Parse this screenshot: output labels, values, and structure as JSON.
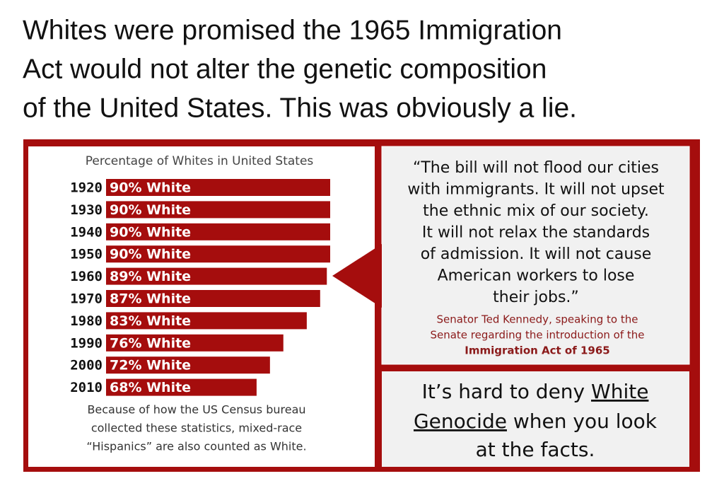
{
  "headline": [
    "Whites were promised the 1965 Immigration",
    "Act would not alter the genetic composition",
    "of the United States. This was obviously a lie."
  ],
  "chart_data": {
    "type": "bar",
    "orientation": "horizontal",
    "title": "Percentage of Whites in United States",
    "categories": [
      "1920",
      "1930",
      "1940",
      "1950",
      "1960",
      "1970",
      "1980",
      "1990",
      "2000",
      "2010"
    ],
    "values": [
      90,
      90,
      90,
      90,
      89,
      87,
      83,
      76,
      72,
      68
    ],
    "value_labels": [
      "90% White",
      "90% White",
      "90% White",
      "90% White",
      "89% White",
      "87% White",
      "83% White",
      "76% White",
      "72% White",
      "68% White"
    ],
    "color": "#a50d0d",
    "xlim": [
      23,
      90
    ],
    "note": [
      "Because of how the US Census bureau",
      "collected these statistics, mixed-race",
      "“Hispanics” are also counted as White."
    ]
  },
  "quote": {
    "lines": [
      "“The bill will not flood our cities",
      "with immigrants. It will not upset",
      "the ethnic mix of our society.",
      "It will not relax the standards",
      "of admission. It will not cause",
      "American workers to lose",
      "their jobs.”"
    ],
    "attribution": [
      "Senator Ted Kennedy, speaking to the",
      "Senate regarding the introduction of the",
      "Immigration Act of 1965"
    ]
  },
  "conclusion": [
    [
      "It’s hard to deny ",
      "White"
    ],
    [
      "Genocide",
      " when you look"
    ],
    [
      "at the facts."
    ]
  ]
}
